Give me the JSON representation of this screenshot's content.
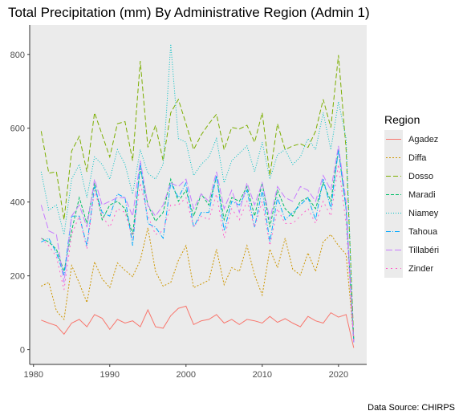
{
  "chart_data": {
    "type": "line",
    "title": "Total Precipitation (mm) By Administrative Region (Admin 1)",
    "xlabel": "",
    "ylabel": "",
    "caption": "Data Source: CHIRPS",
    "legend_title": "Region",
    "legend_position": "right",
    "xlim": [
      1979.5,
      2023.7
    ],
    "ylim": [
      -40,
      880
    ],
    "x_ticks": [
      1980,
      1990,
      2000,
      2010,
      2020
    ],
    "y_ticks": [
      0,
      200,
      400,
      600,
      800
    ],
    "grid": false,
    "x": [
      1981,
      1982,
      1983,
      1984,
      1985,
      1986,
      1987,
      1988,
      1989,
      1990,
      1991,
      1992,
      1993,
      1994,
      1995,
      1996,
      1997,
      1998,
      1999,
      2000,
      2001,
      2002,
      2003,
      2004,
      2005,
      2006,
      2007,
      2008,
      2009,
      2010,
      2011,
      2012,
      2013,
      2014,
      2015,
      2016,
      2017,
      2018,
      2019,
      2020,
      2021,
      2022
    ],
    "series": [
      {
        "name": "Agadez",
        "color": "#F8766D",
        "dash": "",
        "values": [
          80,
          72,
          65,
          42,
          72,
          82,
          62,
          95,
          85,
          55,
          82,
          72,
          78,
          62,
          108,
          62,
          58,
          92,
          112,
          118,
          68,
          78,
          82,
          95,
          72,
          82,
          68,
          82,
          78,
          72,
          90,
          74,
          84,
          72,
          62,
          90,
          78,
          72,
          100,
          88,
          95,
          5
        ]
      },
      {
        "name": "Diffa",
        "color": "#CD9600",
        "dash": "2,2",
        "values": [
          172,
          182,
          105,
          82,
          228,
          180,
          128,
          238,
          192,
          168,
          235,
          215,
          198,
          242,
          330,
          212,
          172,
          182,
          242,
          282,
          168,
          178,
          188,
          272,
          176,
          222,
          212,
          282,
          202,
          148,
          272,
          222,
          302,
          218,
          202,
          262,
          212,
          292,
          312,
          282,
          258,
          30
        ]
      },
      {
        "name": "Dosso",
        "color": "#7CAE00",
        "dash": "6,3",
        "values": [
          592,
          478,
          482,
          352,
          538,
          578,
          482,
          642,
          582,
          522,
          612,
          618,
          512,
          782,
          548,
          608,
          512,
          642,
          678,
          612,
          542,
          582,
          612,
          638,
          542,
          602,
          598,
          608,
          562,
          642,
          472,
          612,
          542,
          552,
          558,
          548,
          592,
          678,
          602,
          798,
          542,
          30
        ]
      },
      {
        "name": "Maradi",
        "color": "#00BE67",
        "dash": "4,2",
        "values": [
          302,
          292,
          272,
          212,
          322,
          412,
          342,
          452,
          352,
          392,
          402,
          382,
          312,
          492,
          392,
          348,
          372,
          462,
          402,
          432,
          362,
          422,
          392,
          468,
          352,
          412,
          402,
          442,
          362,
          452,
          332,
          432,
          382,
          362,
          402,
          412,
          382,
          452,
          402,
          542,
          382,
          25
        ]
      },
      {
        "name": "Niamey",
        "color": "#00BFC4",
        "dash": "1,2",
        "values": [
          482,
          378,
          392,
          312,
          462,
          502,
          412,
          522,
          502,
          462,
          542,
          502,
          422,
          542,
          478,
          462,
          502,
          828,
          572,
          562,
          472,
          502,
          522,
          572,
          452,
          512,
          532,
          552,
          482,
          562,
          462,
          528,
          542,
          502,
          522,
          572,
          542,
          642,
          542,
          672,
          572,
          20
        ]
      },
      {
        "name": "Tahoua",
        "color": "#00A9FF",
        "dash": "6,2,1,2",
        "values": [
          292,
          302,
          262,
          202,
          362,
          362,
          282,
          442,
          372,
          362,
          422,
          412,
          282,
          508,
          342,
          332,
          302,
          452,
          412,
          452,
          332,
          372,
          372,
          472,
          322,
          402,
          392,
          432,
          332,
          432,
          292,
          412,
          352,
          372,
          392,
          412,
          352,
          462,
          382,
          542,
          382,
          20
        ]
      },
      {
        "name": "Tillabéri",
        "color": "#C77CFF",
        "dash": "8,3",
        "values": [
          392,
          322,
          312,
          182,
          362,
          392,
          332,
          462,
          392,
          402,
          412,
          412,
          362,
          512,
          392,
          362,
          392,
          452,
          442,
          462,
          382,
          422,
          402,
          482,
          382,
          432,
          372,
          452,
          392,
          452,
          352,
          442,
          412,
          402,
          442,
          432,
          402,
          472,
          432,
          552,
          402,
          20
        ]
      },
      {
        "name": "Zinder",
        "color": "#FF61CC",
        "dash": "2,4",
        "values": [
          302,
          282,
          252,
          162,
          312,
          362,
          272,
          432,
          362,
          332,
          382,
          372,
          302,
          452,
          362,
          312,
          322,
          392,
          392,
          412,
          332,
          362,
          352,
          422,
          302,
          382,
          352,
          402,
          332,
          402,
          282,
          382,
          342,
          342,
          362,
          382,
          342,
          402,
          362,
          502,
          342,
          20
        ]
      }
    ]
  }
}
